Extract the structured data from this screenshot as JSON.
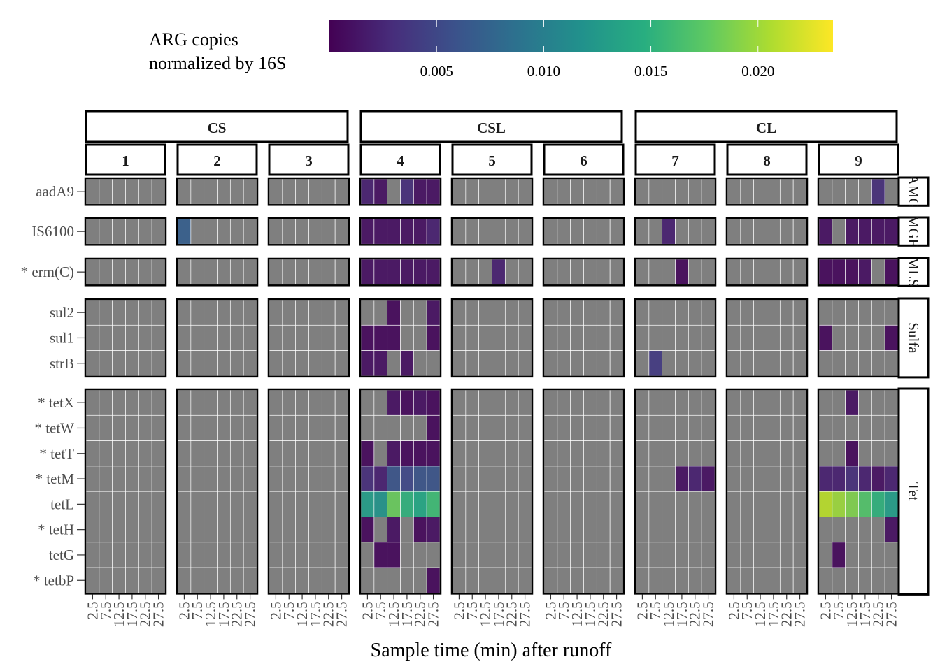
{
  "chart_data": {
    "type": "heatmap",
    "xlabel": "Sample time (min) after runoff",
    "legend": {
      "title_lines": [
        "ARG copies",
        "normalized by 16S"
      ],
      "position": "top",
      "range": [
        0.0,
        0.0235
      ],
      "ticks": [
        0.005,
        0.01,
        0.015,
        0.02
      ],
      "tick_labels": [
        "0.005",
        "0.010",
        "0.015",
        "0.020"
      ]
    },
    "x_ticks": [
      "2.5",
      "7.5",
      "12.5",
      "17.5",
      "22.5",
      "27.5"
    ],
    "column_groups": [
      {
        "label": "CS",
        "sites": [
          "1",
          "2",
          "3"
        ]
      },
      {
        "label": "CSL",
        "sites": [
          "4",
          "5",
          "6"
        ]
      },
      {
        "label": "CL",
        "sites": [
          "7",
          "8",
          "9"
        ]
      }
    ],
    "sites": [
      "1",
      "2",
      "3",
      "4",
      "5",
      "6",
      "7",
      "8",
      "9"
    ],
    "row_groups": [
      {
        "label": "AMG",
        "genes": [
          "aadA9"
        ]
      },
      {
        "label": "MGE",
        "genes": [
          "IS6100"
        ]
      },
      {
        "label": "MLS",
        "genes": [
          "* erm(C)"
        ]
      },
      {
        "label": "Sulfa",
        "genes": [
          "sul2",
          "sul1",
          "strB"
        ]
      },
      {
        "label": "Tet",
        "genes": [
          "* tetX",
          "* tetW",
          "* tetT",
          "* tetM",
          "tetL",
          "* tetH",
          "tetG",
          "* tetbP"
        ]
      }
    ],
    "missing_color": "#7f7f7f",
    "colormap": "viridis",
    "values": {
      "aadA9": {
        "1": [
          null,
          null,
          null,
          null,
          null,
          null
        ],
        "2": [
          null,
          null,
          null,
          null,
          null,
          null
        ],
        "3": [
          null,
          null,
          null,
          null,
          null,
          null
        ],
        "4": [
          0.002,
          0.001,
          null,
          0.003,
          0.001,
          0.001
        ],
        "5": [
          null,
          null,
          null,
          null,
          null,
          null
        ],
        "6": [
          null,
          null,
          null,
          null,
          null,
          null
        ],
        "7": [
          null,
          null,
          null,
          null,
          null,
          null
        ],
        "8": [
          null,
          null,
          null,
          null,
          null,
          null
        ],
        "9": [
          null,
          null,
          null,
          null,
          0.003,
          null
        ]
      },
      "IS6100": {
        "1": [
          null,
          null,
          null,
          null,
          null,
          null
        ],
        "2": [
          0.007,
          null,
          null,
          null,
          null,
          null
        ],
        "3": [
          null,
          null,
          null,
          null,
          null,
          null
        ],
        "4": [
          0.001,
          0.001,
          0.001,
          0.001,
          0.001,
          0.002
        ],
        "5": [
          null,
          null,
          null,
          null,
          null,
          null
        ],
        "6": [
          null,
          null,
          null,
          null,
          null,
          null
        ],
        "7": [
          null,
          null,
          0.002,
          null,
          null,
          null
        ],
        "8": [
          null,
          null,
          null,
          null,
          null,
          null
        ],
        "9": [
          0.001,
          null,
          0.001,
          0.001,
          0.001,
          0.001
        ]
      },
      "* erm(C)": {
        "1": [
          null,
          null,
          null,
          null,
          null,
          null
        ],
        "2": [
          null,
          null,
          null,
          null,
          null,
          null
        ],
        "3": [
          null,
          null,
          null,
          null,
          null,
          null
        ],
        "4": [
          0.001,
          0.001,
          0.001,
          0.001,
          0.001,
          0.001
        ],
        "5": [
          null,
          null,
          null,
          0.002,
          null,
          null
        ],
        "6": [
          null,
          null,
          null,
          null,
          null,
          null
        ],
        "7": [
          null,
          null,
          null,
          0.0005,
          null,
          null
        ],
        "8": [
          null,
          null,
          null,
          null,
          null,
          null
        ],
        "9": [
          0.0005,
          0.0005,
          0.0005,
          0.001,
          null,
          0.0005
        ]
      },
      "sul2": {
        "1": [
          null,
          null,
          null,
          null,
          null,
          null
        ],
        "2": [
          null,
          null,
          null,
          null,
          null,
          null
        ],
        "3": [
          null,
          null,
          null,
          null,
          null,
          null
        ],
        "4": [
          null,
          null,
          0.0005,
          null,
          null,
          0.001
        ],
        "5": [
          null,
          null,
          null,
          null,
          null,
          null
        ],
        "6": [
          null,
          null,
          null,
          null,
          null,
          null
        ],
        "7": [
          null,
          null,
          null,
          null,
          null,
          null
        ],
        "8": [
          null,
          null,
          null,
          null,
          null,
          null
        ],
        "9": [
          null,
          null,
          null,
          null,
          null,
          null
        ]
      },
      "sul1": {
        "1": [
          null,
          null,
          null,
          null,
          null,
          null
        ],
        "2": [
          null,
          null,
          null,
          null,
          null,
          null
        ],
        "3": [
          null,
          null,
          null,
          null,
          null,
          null
        ],
        "4": [
          0.0005,
          0.0005,
          0.0005,
          null,
          null,
          0.0005
        ],
        "5": [
          null,
          null,
          null,
          null,
          null,
          null
        ],
        "6": [
          null,
          null,
          null,
          null,
          null,
          null
        ],
        "7": [
          null,
          null,
          null,
          null,
          null,
          null
        ],
        "8": [
          null,
          null,
          null,
          null,
          null,
          null
        ],
        "9": [
          0.0005,
          null,
          null,
          null,
          null,
          0.0005
        ]
      },
      "strB": {
        "1": [
          null,
          null,
          null,
          null,
          null,
          null
        ],
        "2": [
          null,
          null,
          null,
          null,
          null,
          null
        ],
        "3": [
          null,
          null,
          null,
          null,
          null,
          null
        ],
        "4": [
          0.001,
          0.001,
          null,
          0.001,
          null,
          null
        ],
        "5": [
          null,
          null,
          null,
          null,
          null,
          null
        ],
        "6": [
          null,
          null,
          null,
          null,
          null,
          null
        ],
        "7": [
          null,
          0.004,
          null,
          null,
          null,
          null
        ],
        "8": [
          null,
          null,
          null,
          null,
          null,
          null
        ],
        "9": [
          null,
          null,
          null,
          null,
          null,
          null
        ]
      },
      "* tetX": {
        "1": [
          null,
          null,
          null,
          null,
          null,
          null
        ],
        "2": [
          null,
          null,
          null,
          null,
          null,
          null
        ],
        "3": [
          null,
          null,
          null,
          null,
          null,
          null
        ],
        "4": [
          null,
          null,
          0.001,
          0.0005,
          0.001,
          0.0005
        ],
        "5": [
          null,
          null,
          null,
          null,
          null,
          null
        ],
        "6": [
          null,
          null,
          null,
          null,
          null,
          null
        ],
        "7": [
          null,
          null,
          null,
          null,
          null,
          null
        ],
        "8": [
          null,
          null,
          null,
          null,
          null,
          null
        ],
        "9": [
          null,
          null,
          0.001,
          null,
          null,
          null
        ]
      },
      "* tetW": {
        "1": [
          null,
          null,
          null,
          null,
          null,
          null
        ],
        "2": [
          null,
          null,
          null,
          null,
          null,
          null
        ],
        "3": [
          null,
          null,
          null,
          null,
          null,
          null
        ],
        "4": [
          null,
          null,
          null,
          null,
          null,
          0.0005
        ],
        "5": [
          null,
          null,
          null,
          null,
          null,
          null
        ],
        "6": [
          null,
          null,
          null,
          null,
          null,
          null
        ],
        "7": [
          null,
          null,
          null,
          null,
          null,
          null
        ],
        "8": [
          null,
          null,
          null,
          null,
          null,
          null
        ],
        "9": [
          null,
          null,
          null,
          null,
          null,
          null
        ]
      },
      "* tetT": {
        "1": [
          null,
          null,
          null,
          null,
          null,
          null
        ],
        "2": [
          null,
          null,
          null,
          null,
          null,
          null
        ],
        "3": [
          null,
          null,
          null,
          null,
          null,
          null
        ],
        "4": [
          0.0005,
          null,
          0.001,
          0.0005,
          0.0005,
          0.0005
        ],
        "5": [
          null,
          null,
          null,
          null,
          null,
          null
        ],
        "6": [
          null,
          null,
          null,
          null,
          null,
          null
        ],
        "7": [
          null,
          null,
          null,
          null,
          null,
          null
        ],
        "8": [
          null,
          null,
          null,
          null,
          null,
          null
        ],
        "9": [
          null,
          null,
          0.0005,
          null,
          null,
          null
        ]
      },
      "* tetM": {
        "1": [
          null,
          null,
          null,
          null,
          null,
          null
        ],
        "2": [
          null,
          null,
          null,
          null,
          null,
          null
        ],
        "3": [
          null,
          null,
          null,
          null,
          null,
          null
        ],
        "4": [
          0.003,
          0.002,
          0.006,
          0.005,
          0.006,
          0.006
        ],
        "5": [
          null,
          null,
          null,
          null,
          null,
          null
        ],
        "6": [
          null,
          null,
          null,
          null,
          null,
          null
        ],
        "7": [
          null,
          null,
          null,
          0.001,
          0.002,
          0.001
        ],
        "8": [
          null,
          null,
          null,
          null,
          null,
          null
        ],
        "9": [
          0.002,
          0.002,
          0.003,
          0.002,
          0.001,
          0.002
        ]
      },
      "tetL": {
        "1": [
          null,
          null,
          null,
          null,
          null,
          null
        ],
        "2": [
          null,
          null,
          null,
          null,
          null,
          null
        ],
        "3": [
          null,
          null,
          null,
          null,
          null,
          null
        ],
        "4": [
          0.013,
          0.012,
          0.018,
          0.015,
          0.014,
          0.016
        ],
        "5": [
          null,
          null,
          null,
          null,
          null,
          null
        ],
        "6": [
          null,
          null,
          null,
          null,
          null,
          null
        ],
        "7": [
          null,
          null,
          null,
          null,
          null,
          null
        ],
        "8": [
          null,
          null,
          null,
          null,
          null,
          null
        ],
        "9": [
          0.021,
          0.02,
          0.019,
          0.017,
          0.015,
          0.013
        ]
      },
      "* tetH": {
        "1": [
          null,
          null,
          null,
          null,
          null,
          null
        ],
        "2": [
          null,
          null,
          null,
          null,
          null,
          null
        ],
        "3": [
          null,
          null,
          null,
          null,
          null,
          null
        ],
        "4": [
          0.0005,
          null,
          0.001,
          null,
          0.0005,
          0.001
        ],
        "5": [
          null,
          null,
          null,
          null,
          null,
          null
        ],
        "6": [
          null,
          null,
          null,
          null,
          null,
          null
        ],
        "7": [
          null,
          null,
          null,
          null,
          null,
          null
        ],
        "8": [
          null,
          null,
          null,
          null,
          null,
          null
        ],
        "9": [
          null,
          null,
          null,
          null,
          null,
          0.001
        ]
      },
      "tetG": {
        "1": [
          null,
          null,
          null,
          null,
          null,
          null
        ],
        "2": [
          null,
          null,
          null,
          null,
          null,
          null
        ],
        "3": [
          null,
          null,
          null,
          null,
          null,
          null
        ],
        "4": [
          null,
          0.0005,
          0.0005,
          null,
          null,
          null
        ],
        "5": [
          null,
          null,
          null,
          null,
          null,
          null
        ],
        "6": [
          null,
          null,
          null,
          null,
          null,
          null
        ],
        "7": [
          null,
          null,
          null,
          null,
          null,
          null
        ],
        "8": [
          null,
          null,
          null,
          null,
          null,
          null
        ],
        "9": [
          null,
          0.0005,
          null,
          null,
          null,
          null
        ]
      },
      "* tetbP": {
        "1": [
          null,
          null,
          null,
          null,
          null,
          null
        ],
        "2": [
          null,
          null,
          null,
          null,
          null,
          null
        ],
        "3": [
          null,
          null,
          null,
          null,
          null,
          null
        ],
        "4": [
          null,
          null,
          null,
          null,
          null,
          0.0005
        ],
        "5": [
          null,
          null,
          null,
          null,
          null,
          null
        ],
        "6": [
          null,
          null,
          null,
          null,
          null,
          null
        ],
        "7": [
          null,
          null,
          null,
          null,
          null,
          null
        ],
        "8": [
          null,
          null,
          null,
          null,
          null,
          null
        ],
        "9": [
          null,
          null,
          null,
          null,
          null,
          null
        ]
      }
    }
  }
}
